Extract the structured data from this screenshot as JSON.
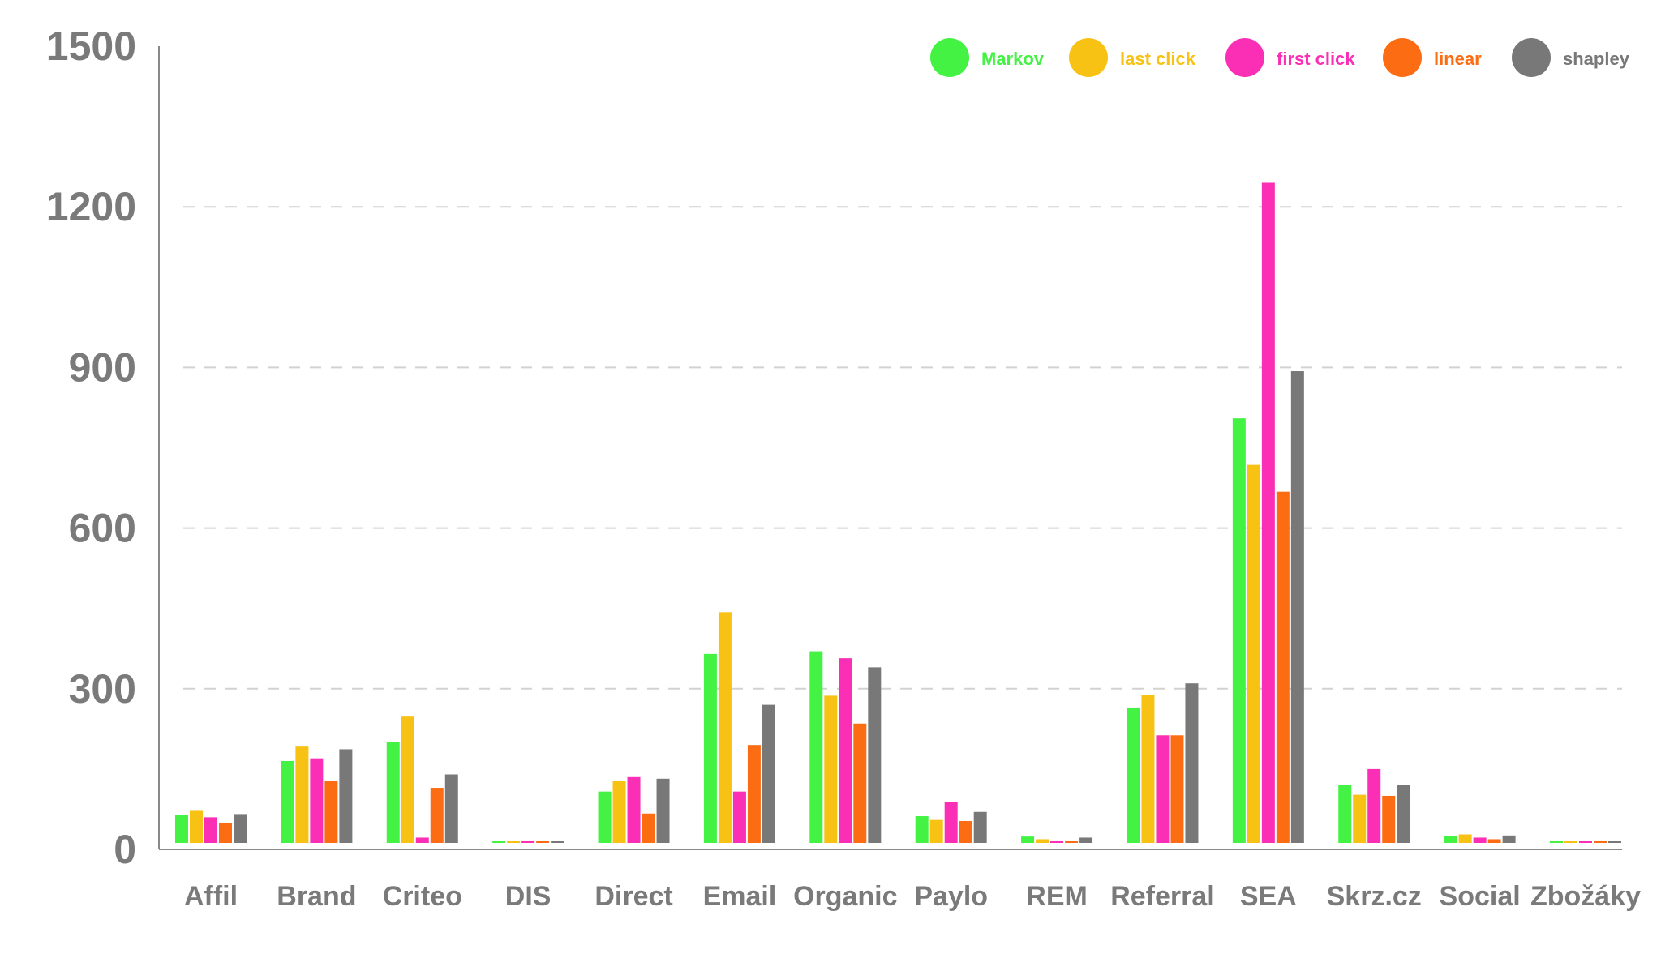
{
  "chart_data": {
    "type": "bar",
    "title": "",
    "xlabel": "",
    "ylabel": "",
    "ylim": [
      0,
      1500
    ],
    "yticks": [
      0,
      300,
      600,
      900,
      1200,
      1500
    ],
    "grid": "horizontal dashed",
    "legend_position": "top-right",
    "categories": [
      "Affil",
      "Brand",
      "Criteo",
      "DIS",
      "Direct",
      "Email",
      "Organic",
      "Paylo",
      "REM",
      "Referral",
      "SEA",
      "Skrz.cz",
      "Social",
      "Zbožáky"
    ],
    "series": [
      {
        "name": "Markov",
        "color": "#44f244",
        "values": [
          65,
          165,
          200,
          12,
          108,
          365,
          370,
          62,
          24,
          265,
          805,
          120,
          25,
          10
        ]
      },
      {
        "name": "last click",
        "color": "#f7c213",
        "values": [
          72,
          192,
          248,
          5,
          128,
          443,
          287,
          55,
          19,
          288,
          718,
          102,
          28,
          10
        ]
      },
      {
        "name": "first click",
        "color": "#fa2fb5",
        "values": [
          60,
          170,
          22,
          10,
          135,
          108,
          357,
          88,
          9,
          213,
          1245,
          150,
          22,
          10
        ]
      },
      {
        "name": "linear",
        "color": "#fc6d13",
        "values": [
          50,
          128,
          115,
          5,
          67,
          195,
          235,
          53,
          15,
          213,
          668,
          100,
          19,
          8
        ]
      },
      {
        "name": "shapley",
        "color": "#787878",
        "values": [
          66,
          187,
          140,
          8,
          132,
          270,
          340,
          70,
          22,
          310,
          893,
          120,
          26,
          12
        ]
      }
    ]
  }
}
